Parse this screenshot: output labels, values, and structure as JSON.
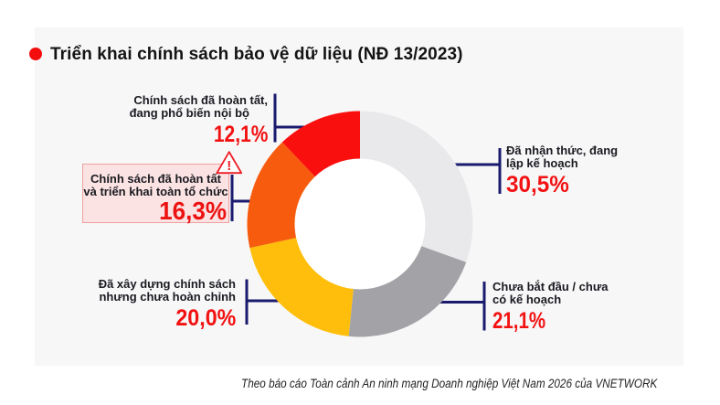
{
  "title": "Triển khai chính sách bảo vệ dữ liệu (NĐ 13/2023)",
  "footer": "Theo báo cáo Toàn cảnh An ninh mạng Doanh nghiệp Việt Nam 2026 của VNETWORK",
  "colors": {
    "page_background": "#ffffff",
    "panel_background": "#f7f7f8",
    "title_bullet": "#f40d0d",
    "connector": "#1a1a6e",
    "label_text": "#1a1a20",
    "percent_text": "#f21212",
    "warning_box_fill": "#fbe3e3",
    "warning_box_border": "#efa0a0",
    "warning_icon": "#ed1c24",
    "donut_hole": "#ffffff"
  },
  "chart_data": {
    "type": "pie",
    "donut": true,
    "start_angle_deg": 0,
    "direction": "clockwise",
    "center": [
      394,
      245
    ],
    "outer_radius": 123.5,
    "inner_radius": 71.5,
    "title": "Triển khai chính sách bảo vệ dữ liệu (NĐ 13/2023)",
    "segments": [
      {
        "label": "Đã nhận thức, đang lập kế hoạch",
        "value": 30.5,
        "display": "30,5%",
        "color": "#e9e9eb"
      },
      {
        "label": "Chưa bắt đầu / chưa có kế hoạch",
        "value": 21.1,
        "display": "21,1%",
        "color": "#a3a3a7"
      },
      {
        "label": "Đã xây dựng chính sách nhưng chưa hoàn chỉnh",
        "value": 20.0,
        "display": "20,0%",
        "color": "#ffbe0b"
      },
      {
        "label": "Chính sách đã hoàn tất và triển khai toàn tổ chức",
        "value": 16.3,
        "display": "16,3%",
        "color": "#f75b0d",
        "highlighted": true
      },
      {
        "label": "Chính sách đã hoàn tất, đang phổ biến nội bộ",
        "value": 12.1,
        "display": "12,1%",
        "color": "#fa0f0f"
      }
    ]
  },
  "callouts": {
    "aware": {
      "line1": "Đã nhận thức, đang",
      "line2": "lập kế hoạch",
      "pct": "30,5%"
    },
    "not_started": {
      "line1": "Chưa bắt đầu / chưa",
      "line2": "có kế hoạch",
      "pct": "21,1%"
    },
    "policy_incomplete": {
      "line1": "Đã xây dựng chính sách",
      "line2": "nhưng chưa hoàn chỉnh",
      "pct": "20,0%"
    },
    "policy_done_internal": {
      "line1": "Chính sách đã hoàn tất,",
      "line2": "đang phổ biến nội bộ",
      "pct": "12,1%"
    },
    "policy_done_org": {
      "line1": "Chính sách đã hoàn tất",
      "line2": "và triển khai toàn tổ chức",
      "pct": "16,3%",
      "warning_mark": "!"
    }
  }
}
